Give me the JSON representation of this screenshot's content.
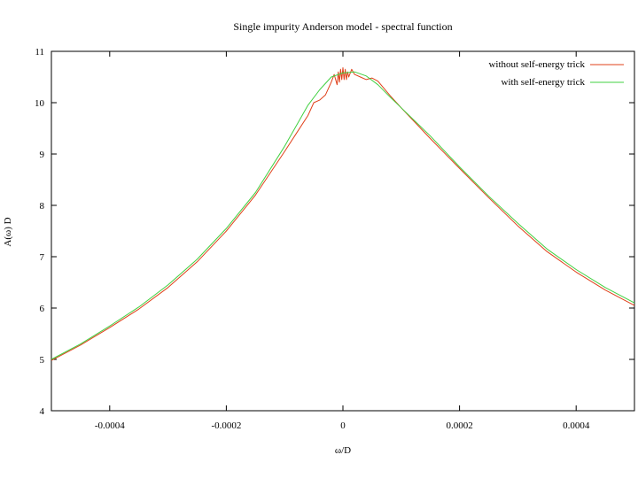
{
  "chart_data": {
    "type": "line",
    "title": "Single impurity Anderson model - spectral function",
    "xlabel": "ω/D",
    "ylabel": "A(ω) D",
    "xlim": [
      -0.0005,
      0.0005
    ],
    "ylim": [
      4,
      11
    ],
    "x_ticks": [
      -0.0004,
      -0.0002,
      0,
      0.0002,
      0.0004
    ],
    "x_tick_labels": [
      "-0.0004",
      "-0.0002",
      "0",
      "0.0002",
      "0.0004"
    ],
    "y_ticks": [
      4,
      5,
      6,
      7,
      8,
      9,
      10,
      11
    ],
    "y_tick_labels": [
      "4",
      "5",
      "6",
      "7",
      "8",
      "9",
      "10",
      "11"
    ],
    "grid": false,
    "legend_position": "top-right",
    "series": [
      {
        "name": "without self-energy trick",
        "color": "#e0401a",
        "x": [
          -0.0005,
          -0.00045,
          -0.0004,
          -0.00035,
          -0.0003,
          -0.00025,
          -0.0002,
          -0.00015,
          -0.0001,
          -8e-05,
          -6e-05,
          -5e-05,
          -4e-05,
          -3e-05,
          -2e-05,
          -1.5e-05,
          -1e-05,
          -8e-06,
          -6e-06,
          -4e-06,
          -2e-06,
          0,
          2e-06,
          4e-06,
          6e-06,
          8e-06,
          1e-05,
          1.5e-05,
          2e-05,
          3e-05,
          4e-05,
          5e-05,
          6e-05,
          8e-05,
          0.0001,
          0.00015,
          0.0002,
          0.00025,
          0.0003,
          0.00035,
          0.0004,
          0.00045,
          0.0005
        ],
        "y": [
          4.98,
          5.28,
          5.62,
          5.98,
          6.4,
          6.9,
          7.5,
          8.2,
          9.05,
          9.4,
          9.75,
          10.0,
          10.05,
          10.15,
          10.4,
          10.55,
          10.35,
          10.6,
          10.4,
          10.65,
          10.45,
          10.68,
          10.45,
          10.65,
          10.45,
          10.6,
          10.5,
          10.65,
          10.55,
          10.5,
          10.45,
          10.48,
          10.42,
          10.15,
          9.9,
          9.3,
          8.72,
          8.15,
          7.6,
          7.1,
          6.7,
          6.35,
          6.05
        ]
      },
      {
        "name": "with self-energy trick",
        "color": "#40d040",
        "x": [
          -0.0005,
          -0.00045,
          -0.0004,
          -0.00035,
          -0.0003,
          -0.00025,
          -0.0002,
          -0.00015,
          -0.0001,
          -8e-05,
          -6e-05,
          -4e-05,
          -2e-05,
          0,
          2e-05,
          4e-05,
          6e-05,
          8e-05,
          0.0001,
          0.00015,
          0.0002,
          0.00025,
          0.0003,
          0.00035,
          0.0004,
          0.00045,
          0.0005
        ],
        "y": [
          5.0,
          5.3,
          5.65,
          6.02,
          6.45,
          6.95,
          7.55,
          8.25,
          9.15,
          9.55,
          9.95,
          10.25,
          10.5,
          10.58,
          10.6,
          10.52,
          10.35,
          10.12,
          9.9,
          9.35,
          8.75,
          8.18,
          7.65,
          7.15,
          6.75,
          6.4,
          6.1
        ]
      }
    ]
  }
}
